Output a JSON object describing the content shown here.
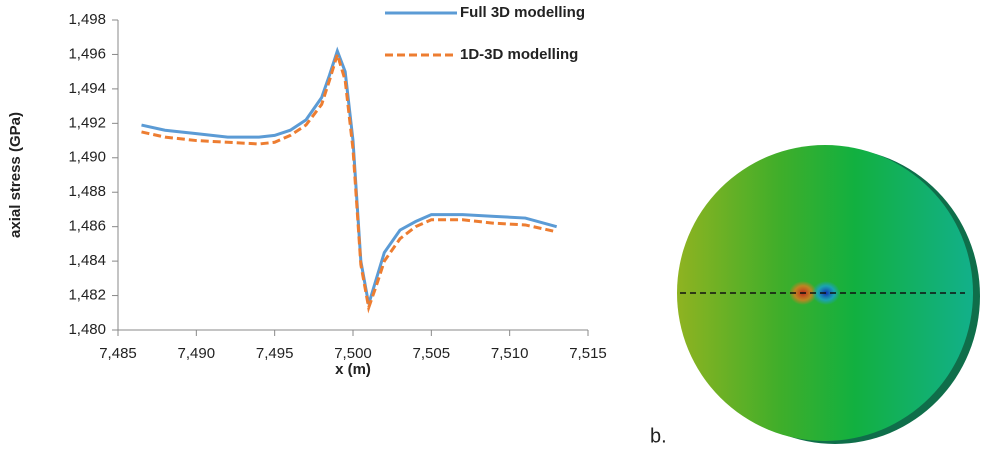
{
  "chart_data": {
    "type": "line",
    "x_label": "x (m)",
    "y_label": "axial stress (GPa)",
    "xlim": [
      7.485,
      7.515
    ],
    "xticks": [
      {
        "value": 7.485,
        "label": "7,485"
      },
      {
        "value": 7.49,
        "label": "7,490"
      },
      {
        "value": 7.495,
        "label": "7,495"
      },
      {
        "value": 7.5,
        "label": "7,500"
      },
      {
        "value": 7.505,
        "label": "7,505"
      },
      {
        "value": 7.51,
        "label": "7,510"
      },
      {
        "value": 7.515,
        "label": "7,515"
      }
    ],
    "ylim": [
      1.48,
      1.498
    ],
    "yticks": [
      {
        "value": 1.48,
        "label": "1,480"
      },
      {
        "value": 1.482,
        "label": "1,482"
      },
      {
        "value": 1.484,
        "label": "1,484"
      },
      {
        "value": 1.486,
        "label": "1,486"
      },
      {
        "value": 1.488,
        "label": "1,488"
      },
      {
        "value": 1.49,
        "label": "1,490"
      },
      {
        "value": 1.492,
        "label": "1,492"
      },
      {
        "value": 1.494,
        "label": "1,494"
      },
      {
        "value": 1.496,
        "label": "1,496"
      },
      {
        "value": 1.498,
        "label": "1,498"
      }
    ],
    "grid": false,
    "legend": "top",
    "x": [
      7.4865,
      7.488,
      7.49,
      7.492,
      7.494,
      7.495,
      7.496,
      7.497,
      7.498,
      7.4985,
      7.499,
      7.4995,
      7.5,
      7.5005,
      7.501,
      7.5015,
      7.502,
      7.503,
      7.504,
      7.505,
      7.507,
      7.509,
      7.511,
      7.513
    ],
    "series": [
      {
        "name": "Full 3D modelling",
        "color": "#5b9bd5",
        "line_style": "solid",
        "values": [
          1.4919,
          1.4916,
          1.4914,
          1.4912,
          1.4912,
          1.4913,
          1.4916,
          1.4922,
          1.4935,
          1.4948,
          1.4962,
          1.495,
          1.491,
          1.484,
          1.4815,
          1.483,
          1.4845,
          1.4858,
          1.4863,
          1.4867,
          1.4867,
          1.4866,
          1.4865,
          1.486
        ]
      },
      {
        "name": "1D-3D modelling",
        "color": "#ed7d31",
        "line_style": "dashed",
        "values": [
          1.4915,
          1.4912,
          1.491,
          1.4909,
          1.4908,
          1.4909,
          1.4913,
          1.4919,
          1.4931,
          1.4945,
          1.496,
          1.4945,
          1.4905,
          1.4838,
          1.4813,
          1.4826,
          1.484,
          1.4853,
          1.486,
          1.4864,
          1.4864,
          1.4862,
          1.4861,
          1.4857
        ]
      }
    ]
  },
  "figure": {
    "panel_label": "b."
  }
}
